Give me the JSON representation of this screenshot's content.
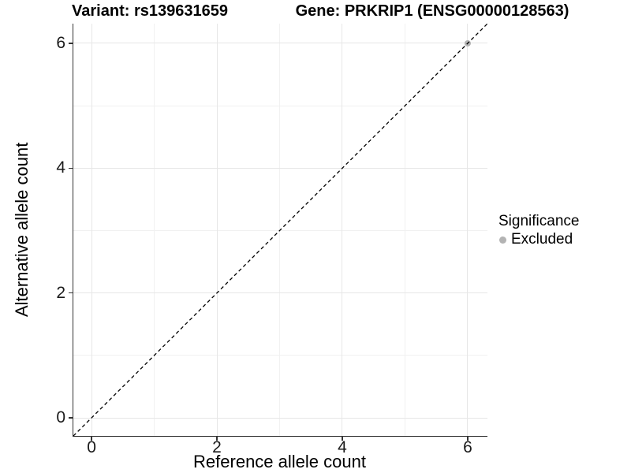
{
  "chart_data": {
    "type": "scatter",
    "titles": {
      "left": "Variant: rs139631659",
      "right": "Gene: PRKRIP1 (ENSG00000128563)"
    },
    "xlabel": "Reference allele count",
    "ylabel": "Alternative allele count",
    "xlim": [
      -0.29,
      6.315
    ],
    "ylim": [
      -0.29,
      6.315
    ],
    "x_ticks": [
      0,
      2,
      4,
      6
    ],
    "y_ticks": [
      0,
      2,
      4,
      6
    ],
    "x_minor_ticks": [
      1,
      3,
      5
    ],
    "y_minor_ticks": [
      1,
      3,
      5
    ],
    "grid": "major+minor",
    "identity_line": {
      "slope": 1,
      "intercept": 0,
      "style": "dashed",
      "color": "#000000"
    },
    "series": [
      {
        "name": "Excluded",
        "color": "#b3b3b3",
        "point_radius": 4,
        "points": [
          {
            "x": 6,
            "y": 6
          }
        ]
      }
    ],
    "legend": {
      "title": "Significance",
      "position": "right",
      "entries": [
        {
          "label": "Excluded",
          "color": "#b3b3b3"
        }
      ]
    },
    "colors": {
      "grid_major": "#e7e7e7",
      "grid_minor": "#f1f1f1",
      "axis_line": "#333333",
      "background": "#ffffff"
    }
  }
}
